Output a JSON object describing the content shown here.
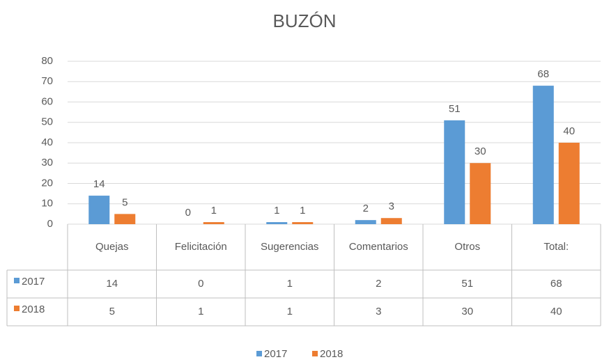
{
  "chart_data": {
    "type": "bar",
    "title": "BUZÓN",
    "categories": [
      "Quejas",
      "Felicitación",
      "Sugerencias",
      "Comentarios",
      "Otros",
      "Total:"
    ],
    "series": [
      {
        "name": "2017",
        "color": "#5b9bd5",
        "values": [
          14,
          0,
          1,
          2,
          51,
          68
        ]
      },
      {
        "name": "2018",
        "color": "#ed7d31",
        "values": [
          5,
          1,
          1,
          3,
          30,
          40
        ]
      }
    ],
    "ylim": [
      0,
      80
    ],
    "yticks": [
      0,
      10,
      20,
      30,
      40,
      50,
      60,
      70,
      80
    ],
    "grid": true,
    "legend": "bottom"
  }
}
